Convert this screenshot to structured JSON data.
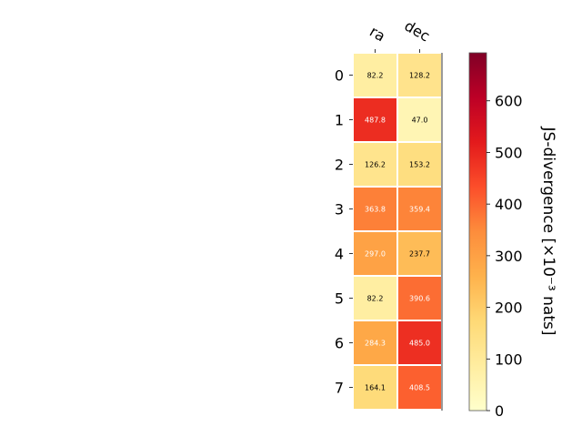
{
  "chart_data": {
    "type": "heatmap",
    "columns": [
      "ra",
      "dec"
    ],
    "rows": [
      "0",
      "1",
      "2",
      "3",
      "4",
      "5",
      "6",
      "7"
    ],
    "values": [
      [
        82.2,
        128.2
      ],
      [
        487.8,
        47.0
      ],
      [
        126.2,
        153.2
      ],
      [
        363.8,
        359.4
      ],
      [
        297.0,
        237.7
      ],
      [
        82.2,
        390.6
      ],
      [
        284.3,
        485.0
      ],
      [
        164.1,
        408.5
      ]
    ],
    "value_labels": [
      [
        "82.2",
        "128.2"
      ],
      [
        "487.8",
        "47.0"
      ],
      [
        "126.2",
        "153.2"
      ],
      [
        "363.8",
        "359.4"
      ],
      [
        "297.0",
        "237.7"
      ],
      [
        "82.2",
        "390.6"
      ],
      [
        "284.3",
        "485.0"
      ],
      [
        "164.1",
        "408.5"
      ]
    ],
    "colorbar": {
      "label": "JS-divergence [×10⁻³ nats]",
      "range": [
        0,
        693
      ],
      "ticks": [
        0,
        100,
        200,
        300,
        400,
        500,
        600
      ],
      "tick_labels": [
        "0",
        "100",
        "200",
        "300",
        "400",
        "500",
        "600"
      ],
      "colormap": "YlOrRd",
      "placement": "right"
    },
    "grid": false
  }
}
